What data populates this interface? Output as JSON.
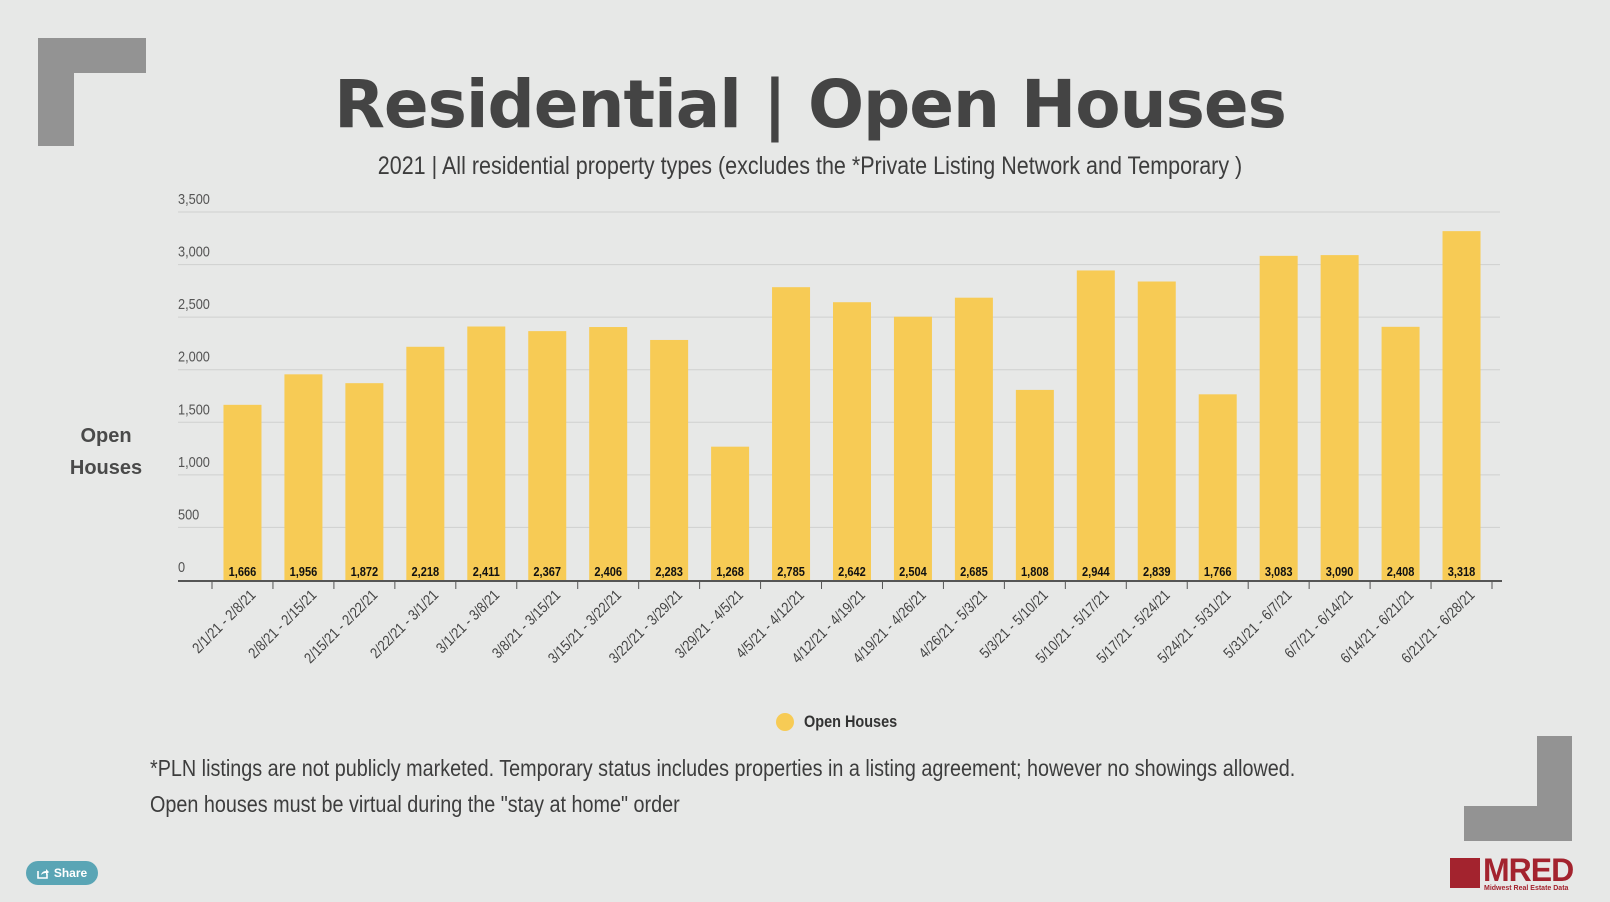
{
  "header": {
    "title": "Residential | Open Houses",
    "subtitle": "2021 | All residential property types (excludes the *Private Listing Network and Temporary )"
  },
  "footnote": "*PLN listings are not publicly marketed. Temporary status includes properties in a listing agreement; however no showings allowed. Open houses must be virtual during the \"stay at home\" order",
  "share": {
    "label": "Share",
    "icon": "share-icon"
  },
  "logo": {
    "text": "MRED",
    "subtext": "Midwest Real Estate Data"
  },
  "colors": {
    "bar": "#f7cb55",
    "grid": "#cfd0cf",
    "axis": "#555555",
    "text": "#444444",
    "brand": "#a3232e"
  },
  "chart_data": {
    "type": "bar",
    "title": "Residential | Open Houses",
    "subtitle": "2021 | All residential property types (excludes the *Private Listing Network and Temporary )",
    "xlabel": "",
    "ylabel": "Open Houses",
    "ylim": [
      0,
      3500
    ],
    "yticks": [
      0,
      500,
      1000,
      1500,
      2000,
      2500,
      3000,
      3500
    ],
    "ytick_labels": [
      "0",
      "500",
      "1,000",
      "1,500",
      "2,000",
      "2,500",
      "3,000",
      "3,500"
    ],
    "grid": true,
    "legend_position": "bottom-center",
    "categories": [
      "2/1/21 - 2/8/21",
      "2/8/21 - 2/15/21",
      "2/15/21 - 2/22/21",
      "2/22/21 - 3/1/21",
      "3/1/21 - 3/8/21",
      "3/8/21 - 3/15/21",
      "3/15/21 - 3/22/21",
      "3/22/21 - 3/29/21",
      "3/29/21 - 4/5/21",
      "4/5/21 - 4/12/21",
      "4/12/21 - 4/19/21",
      "4/19/21 - 4/26/21",
      "4/26/21 - 5/3/21",
      "5/3/21 - 5/10/21",
      "5/10/21 - 5/17/21",
      "5/17/21 - 5/24/21",
      "5/24/21 - 5/31/21",
      "5/31/21 - 6/7/21",
      "6/7/21 - 6/14/21",
      "6/14/21 - 6/21/21",
      "6/21/21 - 6/28/21"
    ],
    "series": [
      {
        "name": "Open Houses",
        "values": [
          1666,
          1956,
          1872,
          2218,
          2411,
          2367,
          2406,
          2283,
          1268,
          2785,
          2642,
          2504,
          2685,
          1808,
          2944,
          2839,
          1766,
          3083,
          3090,
          2408,
          3318
        ],
        "labels": [
          "1,666",
          "1,956",
          "1,872",
          "2,218",
          "2,411",
          "2,367",
          "2,406",
          "2,283",
          "1,268",
          "2,785",
          "2,642",
          "2,504",
          "2,685",
          "1,808",
          "2,944",
          "2,839",
          "1,766",
          "3,083",
          "3,090",
          "2,408",
          "3,318"
        ]
      }
    ]
  }
}
